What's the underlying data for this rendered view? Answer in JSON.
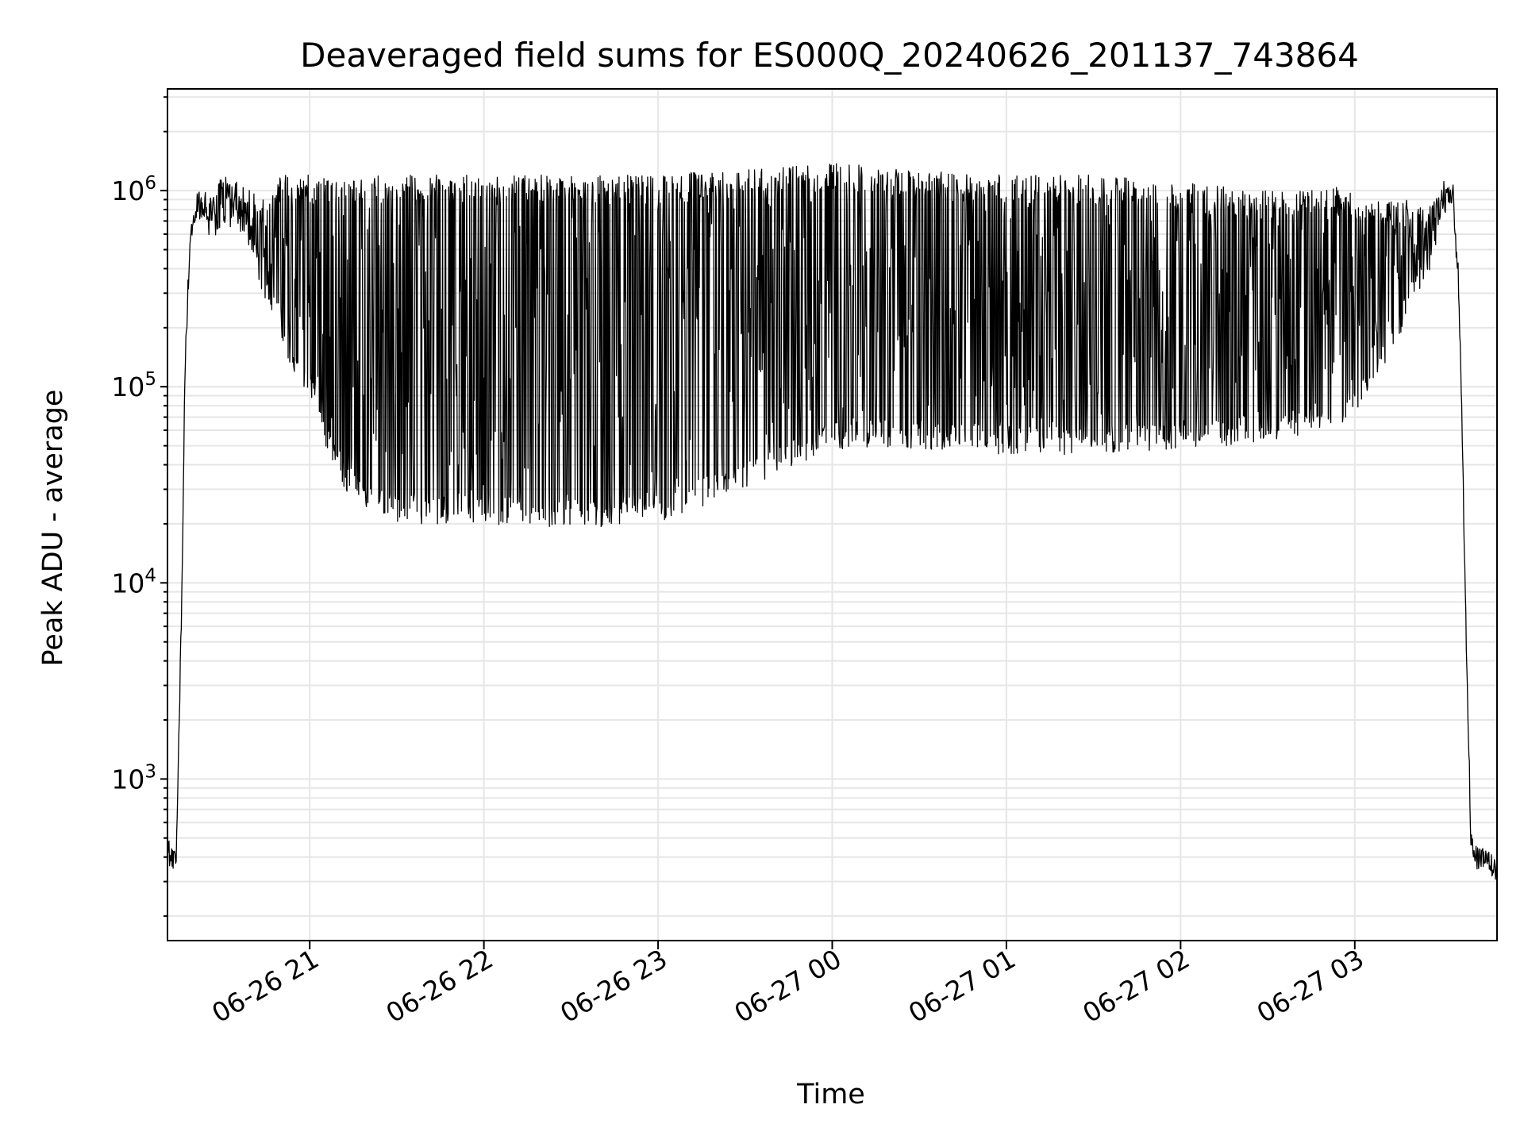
{
  "chart_data": {
    "type": "line",
    "title": "Deaveraged field sums for ES000Q_20240626_201137_743864",
    "xlabel": "Time",
    "ylabel": "Peak ADU - average",
    "yscale": "log",
    "ylim": [
      150,
      3300000
    ],
    "xlim": [
      "2024-06-26 20:11",
      "2024-06-27 03:49"
    ],
    "grid": true,
    "legend": "none",
    "line_color": "#000000",
    "grid_color": "#e6e6e6",
    "x_tick_labels": [
      "06-26 21",
      "06-26 22",
      "06-26 23",
      "06-27 00",
      "06-27 01",
      "06-27 02",
      "06-27 03"
    ],
    "x_ticks": [
      "2024-06-26 21:00",
      "2024-06-26 22:00",
      "2024-06-26 23:00",
      "2024-06-27 00:00",
      "2024-06-27 01:00",
      "2024-06-27 02:00",
      "2024-06-27 03:00"
    ],
    "y_ticks": [
      {
        "value": 1000,
        "base": "10",
        "exp": "3"
      },
      {
        "value": 10000,
        "base": "10",
        "exp": "4"
      },
      {
        "value": 100000,
        "base": "10",
        "exp": "5"
      },
      {
        "value": 1000000,
        "base": "10",
        "exp": "6"
      }
    ],
    "series": [
      {
        "x": [
          "2024-06-26 20:11",
          "2024-06-26 20:12",
          "2024-06-26 20:13",
          "2024-06-26 20:14",
          "2024-06-26 20:16",
          "2024-06-26 20:17",
          "2024-06-26 20:18",
          "2024-06-26 20:19",
          "2024-06-26 20:20",
          "2024-06-26 20:22",
          "2024-06-26 20:24",
          "2024-06-26 20:26",
          "2024-06-26 20:28",
          "2024-06-26 20:30",
          "2024-06-26 20:35",
          "2024-06-26 20:40",
          "2024-06-26 20:45",
          "2024-06-26 20:50",
          "2024-06-26 20:55",
          "2024-06-26 21:00",
          "2024-06-26 21:03",
          "2024-06-26 21:06",
          "2024-06-26 21:10",
          "2024-06-26 21:15",
          "2024-06-26 21:20",
          "2024-06-26 21:30",
          "2024-06-26 21:45",
          "2024-06-26 22:00",
          "2024-06-26 22:30",
          "2024-06-26 23:00",
          "2024-06-26 23:30",
          "2024-06-27 00:00",
          "2024-06-27 00:30",
          "2024-06-27 01:00",
          "2024-06-27 01:30",
          "2024-06-27 02:00",
          "2024-06-27 02:30",
          "2024-06-27 02:50",
          "2024-06-27 03:00",
          "2024-06-27 03:10",
          "2024-06-27 03:20",
          "2024-06-27 03:25",
          "2024-06-27 03:28",
          "2024-06-27 03:31",
          "2024-06-27 03:34",
          "2024-06-27 03:36",
          "2024-06-27 03:38",
          "2024-06-27 03:40",
          "2024-06-27 03:42",
          "2024-06-27 03:45",
          "2024-06-27 03:49"
        ],
        "y": [
          450,
          400,
          380,
          420,
          9000,
          120000,
          300000,
          550000,
          750000,
          900000,
          800000,
          650000,
          700000,
          850000,
          900000,
          600000,
          400000,
          250000,
          150000,
          120000,
          90000,
          70000,
          55000,
          40000,
          30000,
          28000,
          27000,
          26000,
          27000,
          35000,
          45000,
          55000,
          60000,
          58000,
          55000,
          55000,
          60000,
          70000,
          90000,
          150000,
          300000,
          400000,
          600000,
          1000000,
          900000,
          300000,
          10000,
          500,
          400,
          380,
          350
        ],
        "min_envelope": [
          450,
          400,
          380,
          420,
          9000,
          120000,
          300000,
          550000,
          750000,
          900000,
          700000,
          500000,
          550000,
          650000,
          650000,
          450000,
          250000,
          180000,
          110000,
          90000,
          60000,
          45000,
          32000,
          27000,
          22000,
          20000,
          20000,
          20000,
          19000,
          20000,
          30000,
          48000,
          48000,
          45000,
          45000,
          48000,
          52000,
          60000,
          70000,
          120000,
          250000,
          350000,
          500000,
          900000,
          800000,
          250000,
          10000,
          500,
          400,
          380,
          350
        ],
        "max_envelope": [
          450,
          400,
          380,
          420,
          9000,
          120000,
          300000,
          550000,
          750000,
          1000000,
          1000000,
          950000,
          1100000,
          1200000,
          1200000,
          1000000,
          900000,
          1200000,
          1200000,
          1200000,
          1200000,
          1200000,
          1200000,
          1200000,
          1200000,
          1200000,
          1200000,
          1200000,
          1200000,
          1200000,
          1300000,
          1400000,
          1300000,
          1200000,
          1200000,
          1100000,
          1000000,
          1100000,
          1000000,
          900000,
          900000,
          900000,
          1000000,
          1100000,
          1000000,
          300000,
          10000,
          500,
          400,
          380,
          350
        ]
      }
    ]
  }
}
